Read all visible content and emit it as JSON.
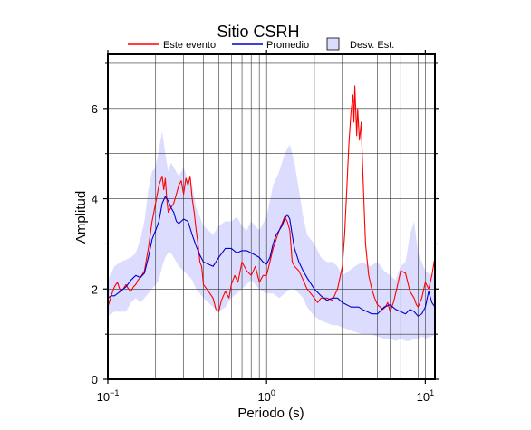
{
  "chart_data": {
    "type": "line",
    "title": "Sitio CSRH",
    "xlabel": "Periodo (s)",
    "ylabel": "Amplitud",
    "x_scale": "log",
    "xlim": [
      0.1,
      11.5
    ],
    "ylim": [
      0,
      7.2
    ],
    "x_ticks": [
      {
        "value": 0.1,
        "base": "10",
        "exp": "−1"
      },
      {
        "value": 1,
        "base": "10",
        "exp": "0"
      },
      {
        "value": 10,
        "base": "10",
        "exp": "1"
      }
    ],
    "y_ticks": [
      {
        "value": 0,
        "label": "0"
      },
      {
        "value": 2,
        "label": "2"
      },
      {
        "value": 4,
        "label": "4"
      },
      {
        "value": 6,
        "label": "6"
      }
    ],
    "grid": true,
    "legend_position": "top",
    "colors": {
      "event": "#ff0000",
      "mean": "#0000cc",
      "band_fill": "#dcdcff",
      "band_edge": "#000000"
    },
    "series": [
      {
        "name": "Este evento",
        "x": [
          0.1,
          0.105,
          0.11,
          0.115,
          0.12,
          0.125,
          0.13,
          0.135,
          0.14,
          0.145,
          0.15,
          0.155,
          0.16,
          0.17,
          0.18,
          0.19,
          0.2,
          0.21,
          0.22,
          0.225,
          0.23,
          0.235,
          0.24,
          0.25,
          0.26,
          0.27,
          0.28,
          0.29,
          0.3,
          0.31,
          0.32,
          0.33,
          0.34,
          0.35,
          0.36,
          0.37,
          0.38,
          0.39,
          0.4,
          0.42,
          0.44,
          0.46,
          0.48,
          0.5,
          0.52,
          0.55,
          0.58,
          0.6,
          0.63,
          0.66,
          0.7,
          0.75,
          0.8,
          0.85,
          0.9,
          0.95,
          1.0,
          1.05,
          1.1,
          1.15,
          1.2,
          1.25,
          1.3,
          1.35,
          1.4,
          1.45,
          1.5,
          1.6,
          1.7,
          1.8,
          1.9,
          2.0,
          2.1,
          2.2,
          2.4,
          2.6,
          2.8,
          3.0,
          3.1,
          3.2,
          3.3,
          3.4,
          3.5,
          3.55,
          3.6,
          3.65,
          3.7,
          3.75,
          3.8,
          3.85,
          3.9,
          3.95,
          4.0,
          4.1,
          4.2,
          4.4,
          4.6,
          4.8,
          5.0,
          5.2,
          5.4,
          5.6,
          5.8,
          6.0,
          6.3,
          6.6,
          7.0,
          7.5,
          8.0,
          8.5,
          8.8,
          9.0,
          9.5,
          10.0,
          10.5,
          11.0,
          11.5
        ],
        "values": [
          1.6,
          1.85,
          2.05,
          2.15,
          1.95,
          2.0,
          2.1,
          2.0,
          1.95,
          2.05,
          2.1,
          2.2,
          2.25,
          2.4,
          2.9,
          3.5,
          3.9,
          4.3,
          4.5,
          4.2,
          4.45,
          4.0,
          3.7,
          3.8,
          3.9,
          4.1,
          4.3,
          4.4,
          4.1,
          4.45,
          4.3,
          4.5,
          4.0,
          3.7,
          3.3,
          3.0,
          2.6,
          2.5,
          2.1,
          2.0,
          1.9,
          1.8,
          1.55,
          1.5,
          1.75,
          1.95,
          1.8,
          2.1,
          2.3,
          2.15,
          2.6,
          2.4,
          2.3,
          2.5,
          2.15,
          2.3,
          2.3,
          2.6,
          2.9,
          3.1,
          3.3,
          3.45,
          3.6,
          3.5,
          3.3,
          2.6,
          2.5,
          2.4,
          2.2,
          2.0,
          1.9,
          1.8,
          1.7,
          1.8,
          1.8,
          1.75,
          2.0,
          2.5,
          3.2,
          4.2,
          5.2,
          5.9,
          6.3,
          5.7,
          6.5,
          5.9,
          5.4,
          6.0,
          5.6,
          5.3,
          5.5,
          5.7,
          5.0,
          4.0,
          3.0,
          2.3,
          2.0,
          1.8,
          1.65,
          1.6,
          1.55,
          1.6,
          1.7,
          1.5,
          1.7,
          2.0,
          2.4,
          2.35,
          1.95,
          1.8,
          1.65,
          1.6,
          1.8,
          2.15,
          2.0,
          2.3,
          2.7
        ]
      },
      {
        "name": "Promedio",
        "x": [
          0.1,
          0.105,
          0.11,
          0.12,
          0.13,
          0.14,
          0.15,
          0.16,
          0.17,
          0.18,
          0.19,
          0.2,
          0.21,
          0.22,
          0.23,
          0.24,
          0.25,
          0.26,
          0.27,
          0.28,
          0.3,
          0.32,
          0.34,
          0.36,
          0.38,
          0.4,
          0.43,
          0.46,
          0.5,
          0.55,
          0.6,
          0.65,
          0.7,
          0.75,
          0.8,
          0.85,
          0.9,
          0.95,
          1.0,
          1.05,
          1.1,
          1.15,
          1.2,
          1.25,
          1.3,
          1.35,
          1.4,
          1.45,
          1.5,
          1.6,
          1.7,
          1.8,
          2.0,
          2.2,
          2.4,
          2.6,
          2.8,
          3.0,
          3.2,
          3.4,
          3.6,
          3.8,
          4.0,
          4.3,
          4.6,
          5.0,
          5.5,
          6.0,
          6.5,
          7.0,
          7.5,
          8.0,
          8.5,
          9.0,
          9.5,
          10.0,
          10.5,
          11.0,
          11.5
        ],
        "values": [
          1.8,
          1.85,
          1.85,
          1.95,
          2.05,
          2.2,
          2.3,
          2.25,
          2.35,
          2.7,
          3.1,
          3.3,
          3.5,
          3.9,
          4.05,
          3.95,
          3.8,
          3.7,
          3.5,
          3.45,
          3.55,
          3.5,
          3.2,
          2.95,
          2.75,
          2.6,
          2.55,
          2.5,
          2.7,
          2.9,
          2.9,
          2.8,
          2.85,
          2.85,
          2.8,
          2.75,
          2.7,
          2.6,
          2.55,
          2.7,
          3.0,
          3.2,
          3.3,
          3.4,
          3.55,
          3.65,
          3.55,
          3.2,
          2.9,
          2.6,
          2.4,
          2.25,
          2.0,
          1.85,
          1.75,
          1.8,
          1.8,
          1.7,
          1.65,
          1.6,
          1.6,
          1.6,
          1.55,
          1.5,
          1.45,
          1.45,
          1.6,
          1.65,
          1.55,
          1.5,
          1.45,
          1.55,
          1.5,
          1.4,
          1.45,
          1.6,
          1.95,
          1.7,
          1.6
        ]
      }
    ],
    "band": {
      "name": "Desv. Est.",
      "x": [
        0.1,
        0.11,
        0.12,
        0.13,
        0.14,
        0.15,
        0.16,
        0.17,
        0.18,
        0.19,
        0.2,
        0.21,
        0.22,
        0.23,
        0.24,
        0.25,
        0.26,
        0.28,
        0.3,
        0.32,
        0.34,
        0.36,
        0.38,
        0.4,
        0.43,
        0.46,
        0.5,
        0.55,
        0.6,
        0.65,
        0.7,
        0.75,
        0.8,
        0.9,
        1.0,
        1.1,
        1.2,
        1.3,
        1.4,
        1.5,
        1.6,
        1.7,
        1.8,
        2.0,
        2.2,
        2.4,
        2.6,
        2.8,
        3.0,
        3.3,
        3.6,
        4.0,
        4.5,
        5.0,
        5.5,
        6.0,
        6.5,
        7.0,
        7.5,
        8.0,
        8.5,
        9.0,
        9.5,
        10.0,
        11.0,
        11.5
      ],
      "upper": [
        2.2,
        2.5,
        2.6,
        2.65,
        2.7,
        2.8,
        3.1,
        3.5,
        4.2,
        4.6,
        4.7,
        5.1,
        5.5,
        5.0,
        4.6,
        4.8,
        4.7,
        4.5,
        4.7,
        4.4,
        4.3,
        3.8,
        3.6,
        3.4,
        3.3,
        3.2,
        3.4,
        3.5,
        3.5,
        3.6,
        3.4,
        3.3,
        3.5,
        3.3,
        3.6,
        4.3,
        4.6,
        5.0,
        5.2,
        4.8,
        4.2,
        3.6,
        3.2,
        3.0,
        2.7,
        2.6,
        2.6,
        2.5,
        2.3,
        2.4,
        2.5,
        2.6,
        2.5,
        2.6,
        2.4,
        2.3,
        2.2,
        2.5,
        2.6,
        3.2,
        3.5,
        2.8,
        2.6,
        2.4,
        2.3,
        2.4
      ],
      "lower": [
        1.4,
        1.5,
        1.5,
        1.5,
        1.7,
        1.8,
        1.7,
        1.8,
        1.9,
        2.0,
        2.1,
        2.2,
        2.5,
        2.7,
        2.8,
        2.8,
        2.7,
        2.5,
        2.4,
        2.3,
        2.2,
        2.0,
        1.9,
        1.8,
        1.7,
        1.6,
        1.5,
        1.6,
        1.8,
        1.9,
        2.0,
        2.1,
        2.2,
        2.0,
        1.9,
        1.9,
        1.8,
        1.9,
        2.0,
        2.0,
        1.9,
        1.8,
        1.6,
        1.4,
        1.3,
        1.25,
        1.2,
        1.2,
        1.15,
        1.1,
        1.05,
        1.0,
        1.0,
        0.95,
        0.9,
        0.9,
        0.85,
        0.9,
        0.85,
        0.85,
        0.9,
        0.9,
        0.95,
        0.9,
        0.95,
        1.0
      ]
    }
  }
}
